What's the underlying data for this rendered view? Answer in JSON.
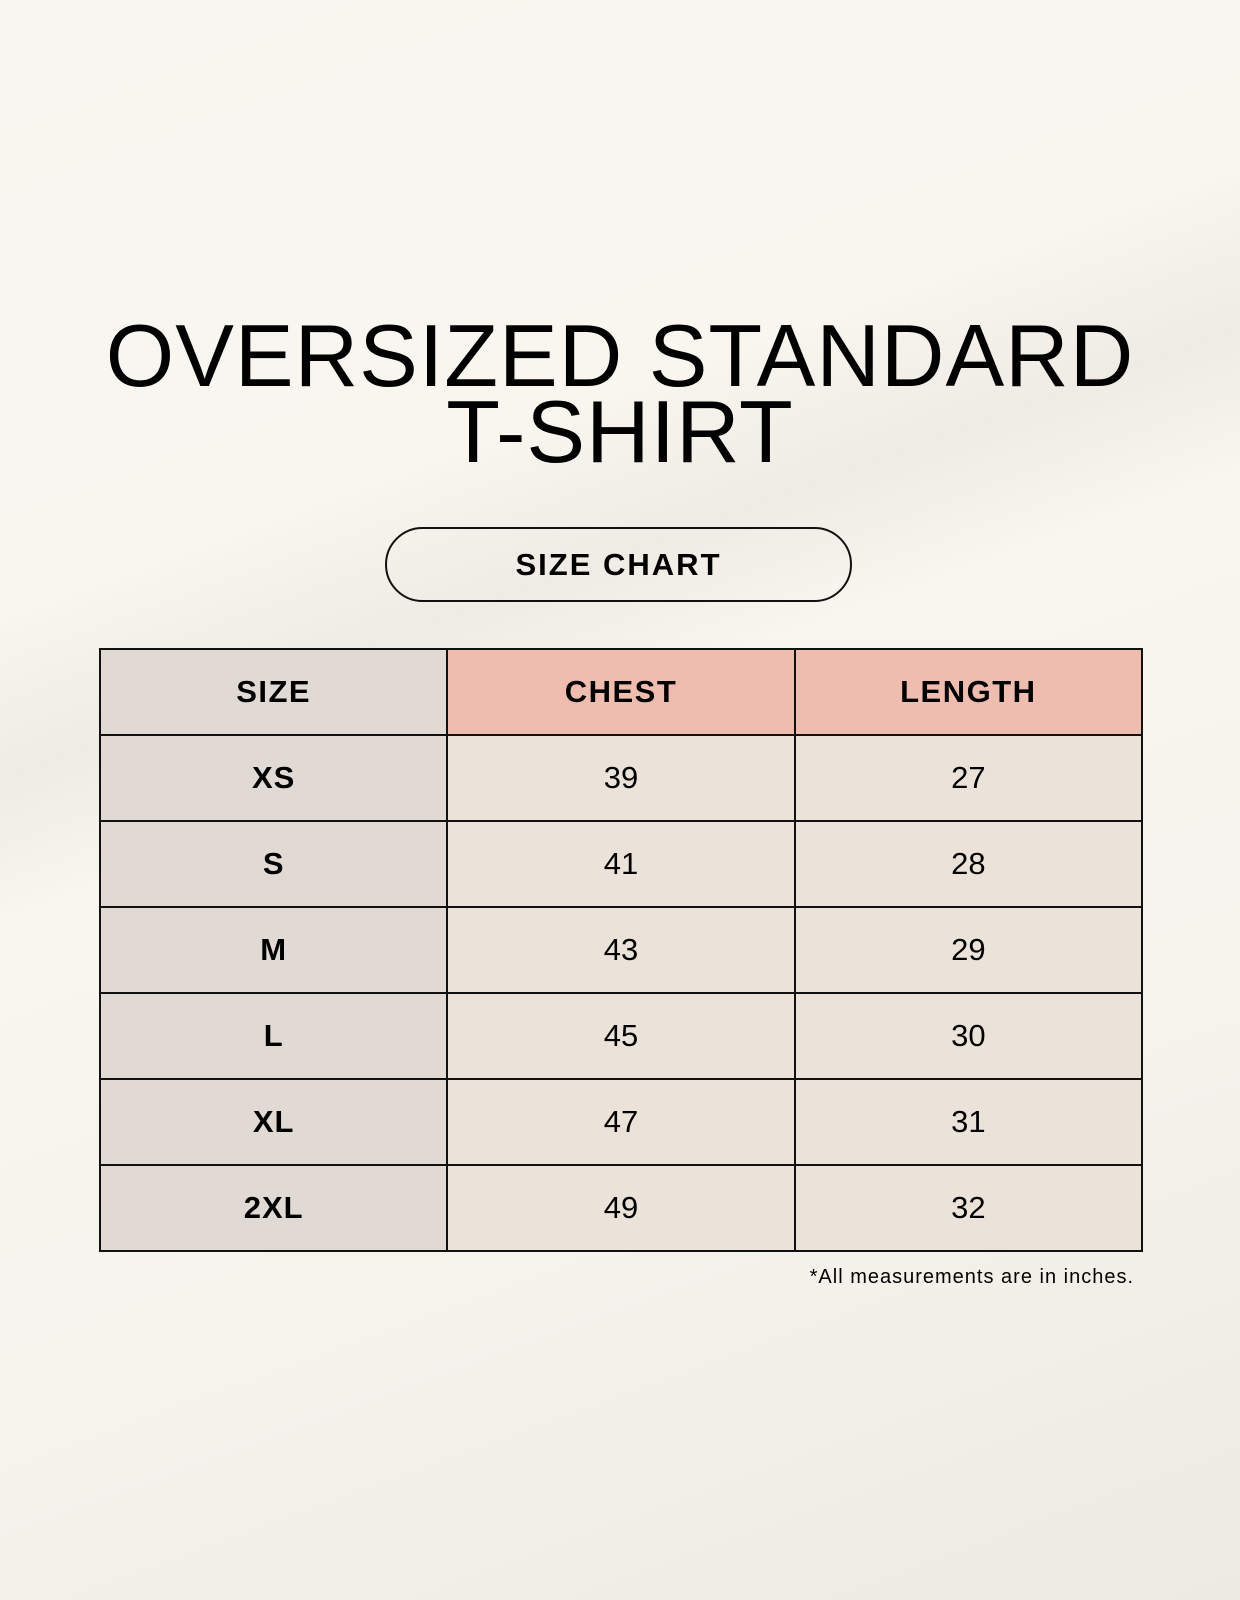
{
  "title": {
    "line1": "OVERSIZED STANDARD",
    "line2": "T-SHIRT"
  },
  "badge": "SIZE CHART",
  "table": {
    "headers": [
      "SIZE",
      "CHEST",
      "LENGTH"
    ],
    "rows": [
      [
        "XS",
        "39",
        "27"
      ],
      [
        "S",
        "41",
        "28"
      ],
      [
        "M",
        "43",
        "29"
      ],
      [
        "L",
        "45",
        "30"
      ],
      [
        "XL",
        "47",
        "31"
      ],
      [
        "2XL",
        "49",
        "32"
      ]
    ]
  },
  "footnote": "*All measurements are in inches.",
  "colors": {
    "size_column": "#e1d9d4",
    "header_accent": "#eebdaf",
    "cell": "#ebe3d9"
  }
}
